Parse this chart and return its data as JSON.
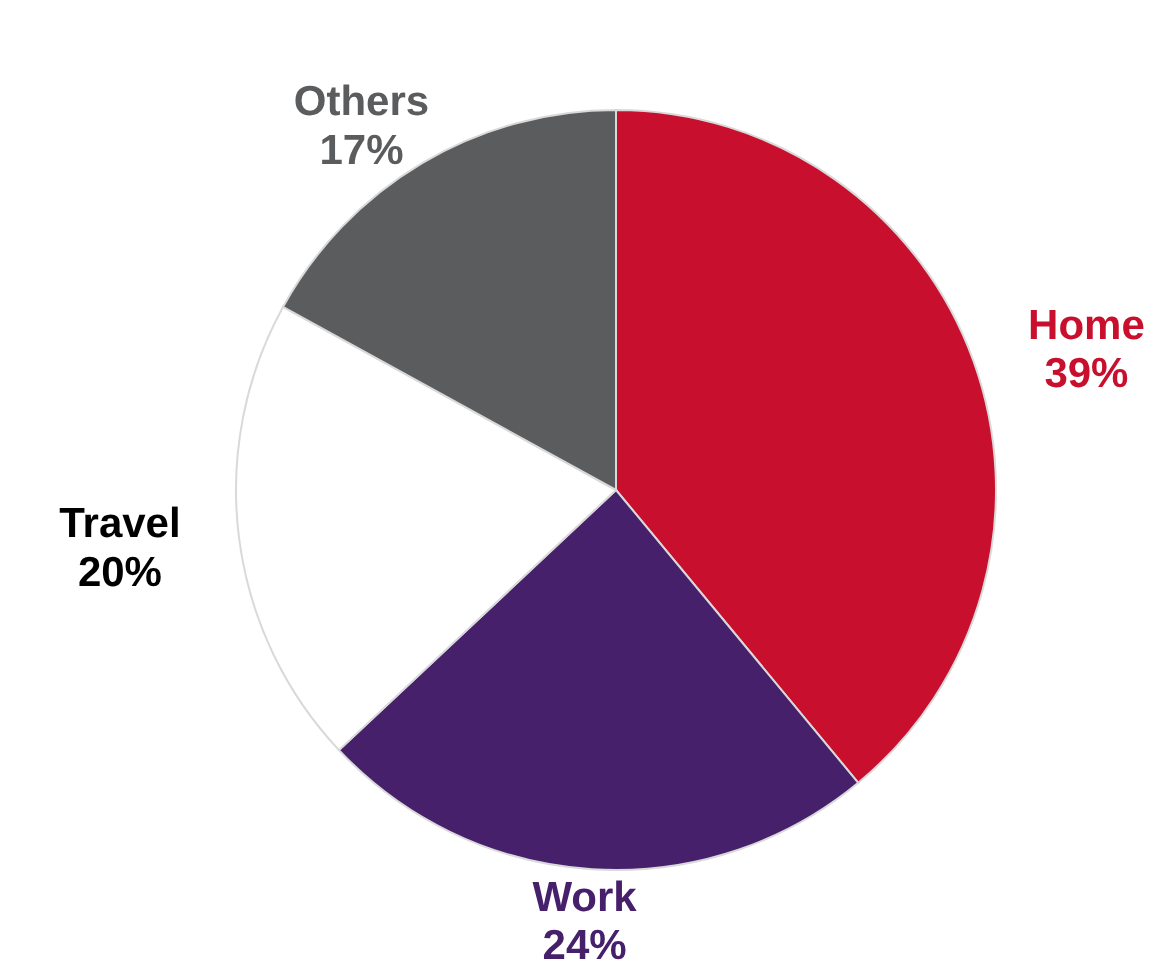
{
  "chart_data": {
    "type": "pie",
    "categories": [
      "Home",
      "Work",
      "Travel",
      "Others"
    ],
    "values": [
      39,
      24,
      20,
      17
    ],
    "value_labels": [
      "39%",
      "24%",
      "20%",
      "17%"
    ],
    "colors": [
      "#c8102e",
      "#46206a",
      "#ffffff",
      "#5a5c5e"
    ],
    "legend": false
  }
}
